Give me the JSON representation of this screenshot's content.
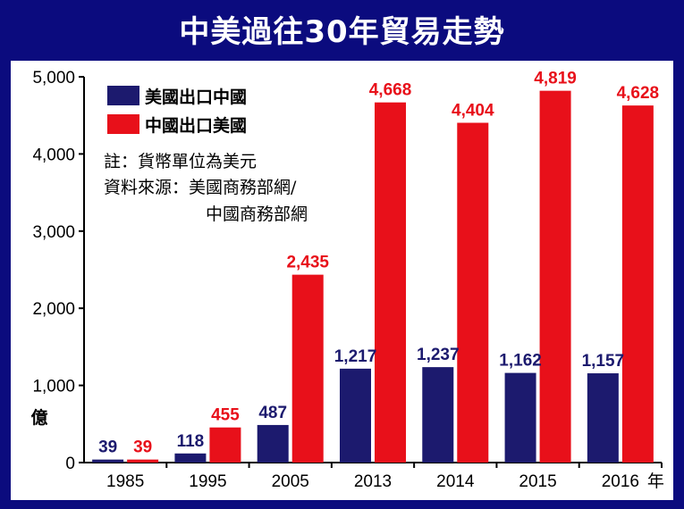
{
  "title": "中美過往30年貿易走勢",
  "legend": [
    {
      "label": "美國出口中國",
      "color": "#1c1a6e"
    },
    {
      "label": "中國出口美國",
      "color": "#e8101a"
    }
  ],
  "notes": {
    "unit": "註：貨幣單位為美元",
    "source_line1": "資料來源：美國商務部網/",
    "source_line2": "中國商務部網"
  },
  "chart_data": {
    "type": "bar",
    "title": "中美過往30年貿易走勢",
    "categories": [
      "1985",
      "1995",
      "2005",
      "2013",
      "2014",
      "2015",
      "2016"
    ],
    "x_suffix": "年",
    "ylabel": "億",
    "ylim": [
      0,
      5000
    ],
    "yticks": [
      "0",
      "1,000",
      "2,000",
      "3,000",
      "4,000",
      "5,000"
    ],
    "series": [
      {
        "name": "美國出口中國",
        "color": "#1c1a6e",
        "values": [
          39,
          118,
          487,
          1217,
          1237,
          1162,
          1157
        ],
        "labels": [
          "39",
          "118",
          "487",
          "1,217",
          "1,237",
          "1,162",
          "1,157"
        ]
      },
      {
        "name": "中國出口美國",
        "color": "#e8101a",
        "values": [
          39,
          455,
          2435,
          4668,
          4404,
          4819,
          4628
        ],
        "labels": [
          "39",
          "455",
          "2,435",
          "4,668",
          "4,404",
          "4,819",
          "4,628"
        ]
      }
    ]
  }
}
